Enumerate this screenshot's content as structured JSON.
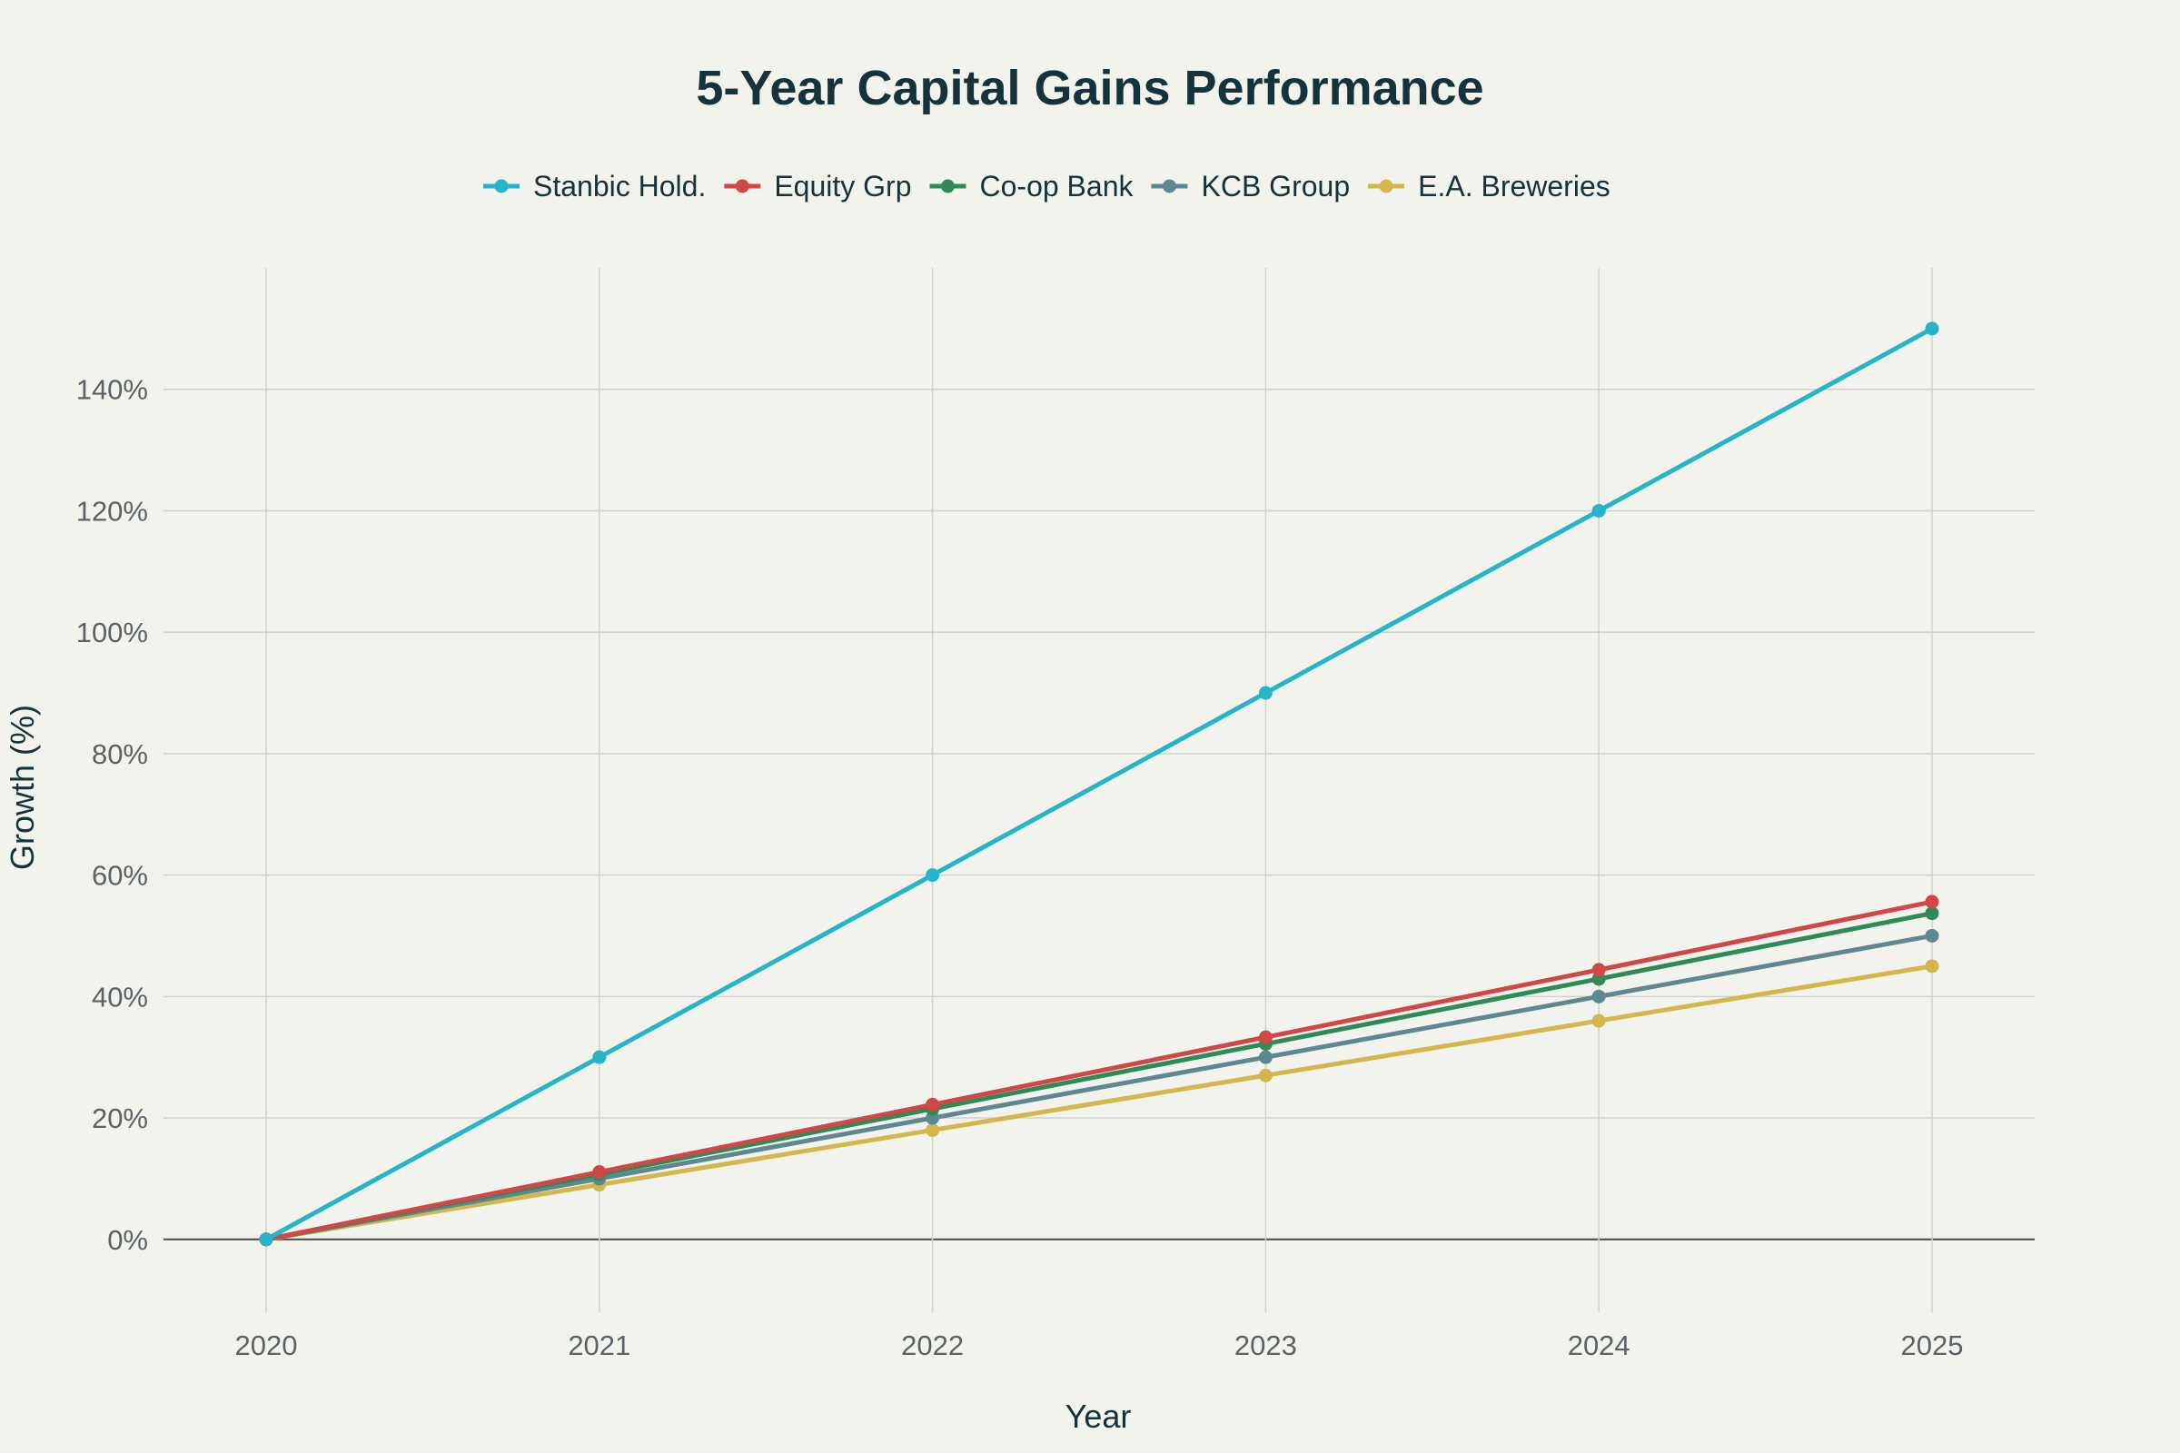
{
  "chart_data": {
    "type": "line",
    "title": "5-Year Capital Gains Performance",
    "xlabel": "Year",
    "ylabel": "Growth (%)",
    "x": [
      2020,
      2021,
      2022,
      2023,
      2024,
      2025
    ],
    "x_tick_labels": [
      "2020",
      "2021",
      "2022",
      "2023",
      "2024",
      "2025"
    ],
    "y_ticks": [
      0,
      20,
      40,
      60,
      80,
      100,
      120,
      140
    ],
    "y_tick_labels": [
      "0%",
      "20%",
      "40%",
      "60%",
      "80%",
      "100%",
      "120%",
      "140%"
    ],
    "ylim": [
      -12,
      160
    ],
    "grid": true,
    "legend_position": "top-center",
    "series": [
      {
        "name": "Stanbic Hold.",
        "color": "#26b4c8",
        "values": [
          0,
          30,
          60,
          90,
          120,
          150
        ]
      },
      {
        "name": "Equity Grp",
        "color": "#d14646",
        "values": [
          0,
          11.1,
          22.2,
          33.3,
          44.4,
          55.6
        ]
      },
      {
        "name": "Co-op Bank",
        "color": "#2e8b57",
        "values": [
          0,
          10.7,
          21.5,
          32.2,
          42.9,
          53.7
        ]
      },
      {
        "name": "KCB Group",
        "color": "#5f8790",
        "values": [
          0,
          10,
          20,
          30,
          40,
          50
        ]
      },
      {
        "name": "E.A. Breweries",
        "color": "#d3b64c",
        "values": [
          0,
          9,
          18,
          27,
          36,
          45
        ]
      }
    ]
  }
}
